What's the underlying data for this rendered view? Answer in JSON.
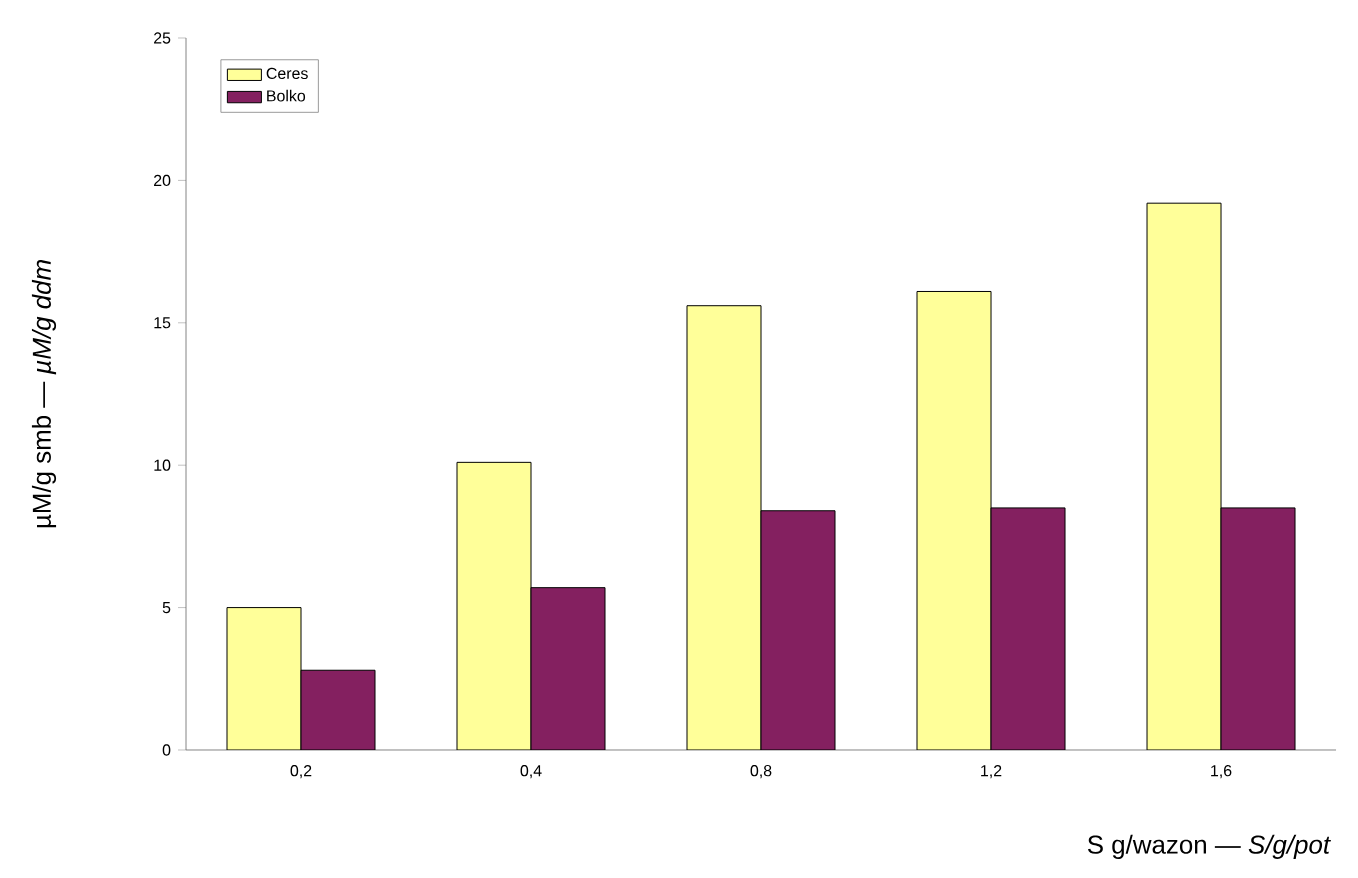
{
  "chart_data": {
    "type": "bar",
    "xlabel": "S g/wazon — *S/g/pot*",
    "ylabel": "µM/g smb — *µM/g ddm*",
    "categories": [
      "0,2",
      "0,4",
      "0,8",
      "1,2",
      "1,6"
    ],
    "series": [
      {
        "name": "Ceres",
        "color": "#ffff99",
        "values": [
          5.0,
          10.1,
          15.6,
          16.1,
          19.2
        ]
      },
      {
        "name": "Bolko",
        "color": "#842060",
        "values": [
          2.8,
          5.7,
          8.4,
          8.5,
          8.5
        ]
      }
    ],
    "ylim": [
      0,
      25
    ],
    "yticks": [
      0,
      5,
      10,
      15,
      20,
      25
    ],
    "grid": false,
    "legend": "top left"
  }
}
